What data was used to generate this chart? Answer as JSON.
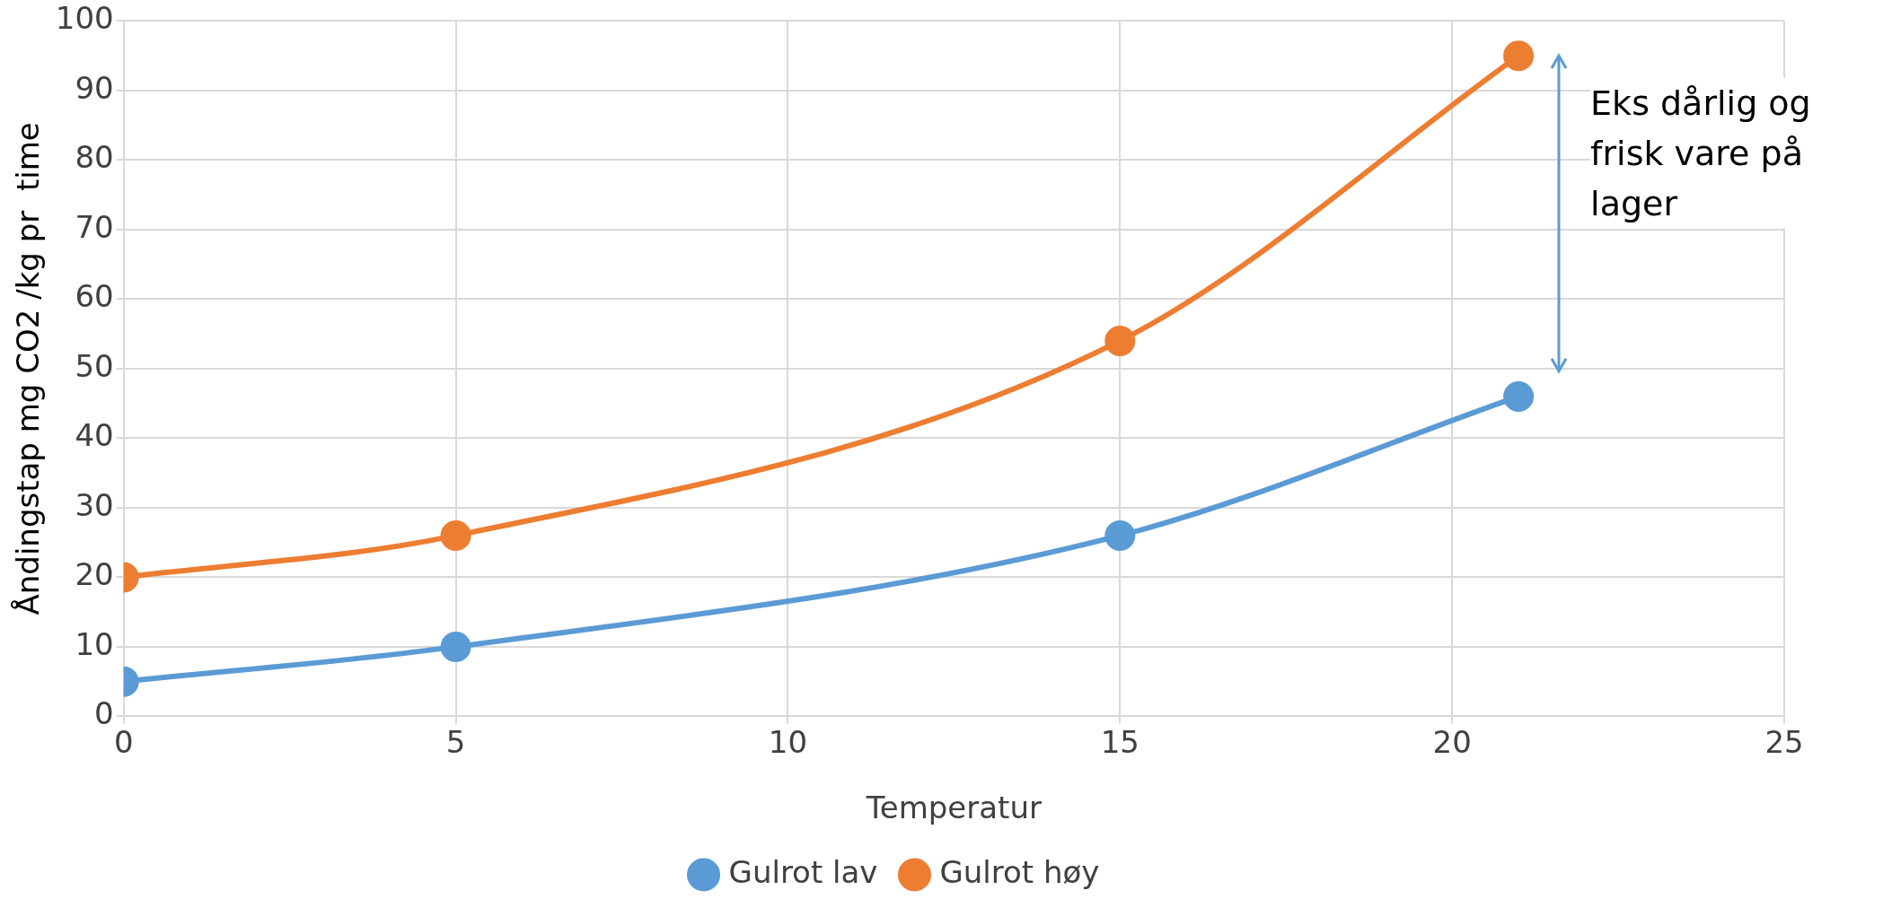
{
  "chart_data": {
    "type": "line",
    "xlabel": "Temperatur",
    "ylabel": "Åndingstap mg CO2 /kg pr  time",
    "x": [
      0,
      5,
      15,
      21
    ],
    "series": [
      {
        "name": "Gulrot lav",
        "color": "#5b9bd5",
        "values": [
          5,
          10,
          26,
          46
        ]
      },
      {
        "name": "Gulrot høy",
        "color": "#ed7d31",
        "values": [
          20,
          26,
          54,
          95
        ]
      }
    ],
    "xlim": [
      0,
      25
    ],
    "xticks": [
      0,
      5,
      10,
      15,
      20,
      25
    ],
    "ylim": [
      0,
      100
    ],
    "yticks": [
      0,
      10,
      20,
      30,
      40,
      50,
      60,
      70,
      80,
      90,
      100
    ],
    "grid": true,
    "legend": "bottom",
    "marker": "circle",
    "line_style": "solid",
    "annotations": [
      "Eks dårlig og frisk vare på lager"
    ]
  }
}
